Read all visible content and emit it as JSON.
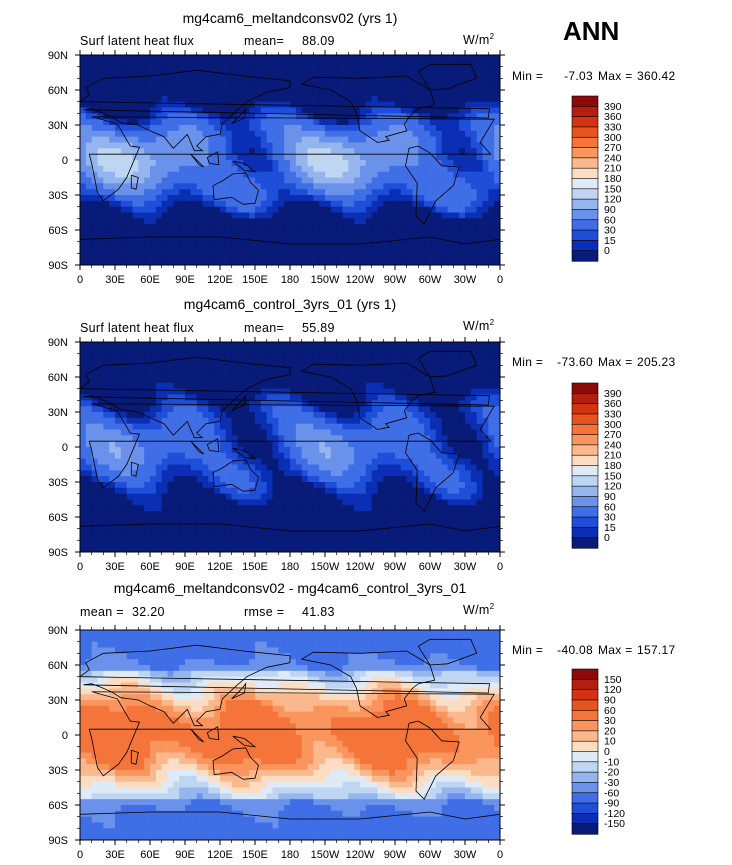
{
  "page": {
    "season_label": "ANN"
  },
  "panels": [
    {
      "title": "mg4cam6_meltandconsv02 (yrs 1)",
      "left_label": "Surf latent heat flux",
      "stat_label": "mean=",
      "stat_value": "88.09",
      "units": "W/m",
      "units_exp": "2",
      "min_label": "Min =",
      "min_value": "-7.03",
      "max_label": "Max =",
      "max_value": "360.42",
      "colorbar_levels": [
        "390",
        "360",
        "330",
        "300",
        "270",
        "240",
        "210",
        "180",
        "150",
        "120",
        "90",
        "60",
        "30",
        "15",
        "0"
      ],
      "colorbar_colors": [
        "#8b0a0a",
        "#b31e0e",
        "#d4330f",
        "#e8541f",
        "#f4743a",
        "#f9955d",
        "#fbb88c",
        "#fdddc2",
        "#dfeaf7",
        "#bfd6f3",
        "#94b5ee",
        "#6a92ea",
        "#3f6ee6",
        "#1f4fd8",
        "#0b2fb4",
        "#081b78"
      ]
    },
    {
      "title": "mg4cam6_control_3yrs_01 (yrs 1)",
      "left_label": "Surf latent heat flux",
      "stat_label": "mean=",
      "stat_value": "55.89",
      "units": "W/m",
      "units_exp": "2",
      "min_label": "Min =",
      "min_value": "-73.60",
      "max_label": "Max =",
      "max_value": "205.23",
      "colorbar_levels": [
        "390",
        "360",
        "330",
        "300",
        "270",
        "240",
        "210",
        "180",
        "150",
        "120",
        "90",
        "60",
        "30",
        "15",
        "0"
      ],
      "colorbar_colors": [
        "#8b0a0a",
        "#b31e0e",
        "#d4330f",
        "#e8541f",
        "#f4743a",
        "#f9955d",
        "#fbb88c",
        "#fdddc2",
        "#dfeaf7",
        "#bfd6f3",
        "#94b5ee",
        "#6a92ea",
        "#3f6ee6",
        "#1f4fd8",
        "#0b2fb4",
        "#081b78"
      ]
    },
    {
      "title": "mg4cam6_meltandconsv02 - mg4cam6_control_3yrs_01",
      "left_label": "mean =",
      "left_value": "32.20",
      "stat_label": "rmse =",
      "stat_value": "41.83",
      "units": "W/m",
      "units_exp": "2",
      "min_label": "Min =",
      "min_value": "-40.08",
      "max_label": "Max =",
      "max_value": "157.17",
      "colorbar_levels": [
        "150",
        "120",
        "90",
        "60",
        "30",
        "20",
        "10",
        "0",
        "-10",
        "-20",
        "-30",
        "-60",
        "-90",
        "-120",
        "-150"
      ],
      "colorbar_colors": [
        "#8b0a0a",
        "#b31e0e",
        "#d4330f",
        "#e8541f",
        "#f4743a",
        "#f9955d",
        "#fbb88c",
        "#fdddc2",
        "#dfeaf7",
        "#bfd6f3",
        "#94b5ee",
        "#6a92ea",
        "#3f6ee6",
        "#1f4fd8",
        "#0b2fb4",
        "#081b78"
      ]
    }
  ],
  "chart_data": [
    {
      "type": "heatmap",
      "title": "mg4cam6_meltandconsv02 (yrs 1)",
      "variable": "Surf latent heat flux",
      "units": "W/m2",
      "mean": 88.09,
      "min": -7.03,
      "max": 360.42,
      "xlim": [
        0,
        360
      ],
      "ylim": [
        -90,
        90
      ],
      "xticks": [
        "0",
        "30E",
        "60E",
        "90E",
        "120E",
        "150E",
        "180",
        "150W",
        "120W",
        "90W",
        "60W",
        "30W",
        "0"
      ],
      "yticks": [
        "90N",
        "60N",
        "30N",
        "0",
        "30S",
        "60S",
        "90S"
      ],
      "levels": [
        0,
        15,
        30,
        60,
        90,
        120,
        150,
        180,
        210,
        240,
        270,
        300,
        330,
        360,
        390
      ]
    },
    {
      "type": "heatmap",
      "title": "mg4cam6_control_3yrs_01 (yrs 1)",
      "variable": "Surf latent heat flux",
      "units": "W/m2",
      "mean": 55.89,
      "min": -73.6,
      "max": 205.23,
      "xlim": [
        0,
        360
      ],
      "ylim": [
        -90,
        90
      ],
      "xticks": [
        "0",
        "30E",
        "60E",
        "90E",
        "120E",
        "150E",
        "180",
        "150W",
        "120W",
        "90W",
        "60W",
        "30W",
        "0"
      ],
      "yticks": [
        "90N",
        "60N",
        "30N",
        "0",
        "30S",
        "60S",
        "90S"
      ],
      "levels": [
        0,
        15,
        30,
        60,
        90,
        120,
        150,
        180,
        210,
        240,
        270,
        300,
        330,
        360,
        390
      ]
    },
    {
      "type": "heatmap",
      "title": "mg4cam6_meltandconsv02 - mg4cam6_control_3yrs_01",
      "units": "W/m2",
      "mean": 32.2,
      "rmse": 41.83,
      "min": -40.08,
      "max": 157.17,
      "xlim": [
        0,
        360
      ],
      "ylim": [
        -90,
        90
      ],
      "xticks": [
        "0",
        "30E",
        "60E",
        "90E",
        "120E",
        "150E",
        "180",
        "150W",
        "120W",
        "90W",
        "60W",
        "30W",
        "0"
      ],
      "yticks": [
        "90N",
        "60N",
        "30N",
        "0",
        "30S",
        "60S",
        "90S"
      ],
      "levels": [
        -150,
        -120,
        -90,
        -60,
        -30,
        -20,
        -10,
        0,
        10,
        20,
        30,
        60,
        90,
        120,
        150
      ]
    }
  ]
}
